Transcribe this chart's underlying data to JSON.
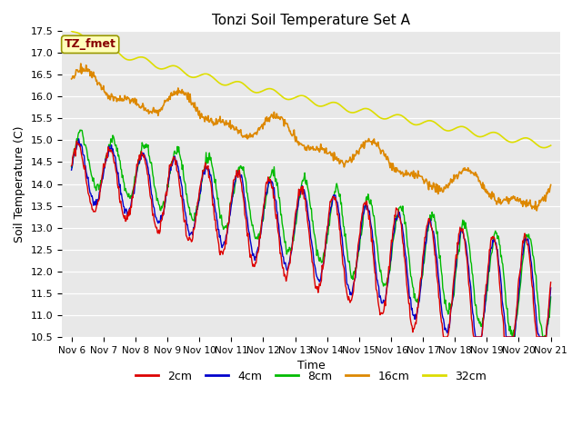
{
  "title": "Tonzi Soil Temperature Set A",
  "xlabel": "Time",
  "ylabel": "Soil Temperature (C)",
  "ylim": [
    10.5,
    17.5
  ],
  "xtick_labels": [
    "Nov 6",
    "Nov 7",
    "Nov 8",
    "Nov 9",
    "Nov 10",
    "Nov 11",
    "Nov 12",
    "Nov 13",
    "Nov 14",
    "Nov 15",
    "Nov 16",
    "Nov 17",
    "Nov 18",
    "Nov 19",
    "Nov 20",
    "Nov 21"
  ],
  "colors": {
    "2cm": "#dd0000",
    "4cm": "#0000cc",
    "8cm": "#00bb00",
    "16cm": "#dd8800",
    "32cm": "#dddd00"
  },
  "yticks": [
    10.5,
    11.0,
    11.5,
    12.0,
    12.5,
    13.0,
    13.5,
    14.0,
    14.5,
    15.0,
    15.5,
    16.0,
    16.5,
    17.0,
    17.5
  ],
  "fig_bg": "#ffffff",
  "plot_bg": "#e8e8e8"
}
